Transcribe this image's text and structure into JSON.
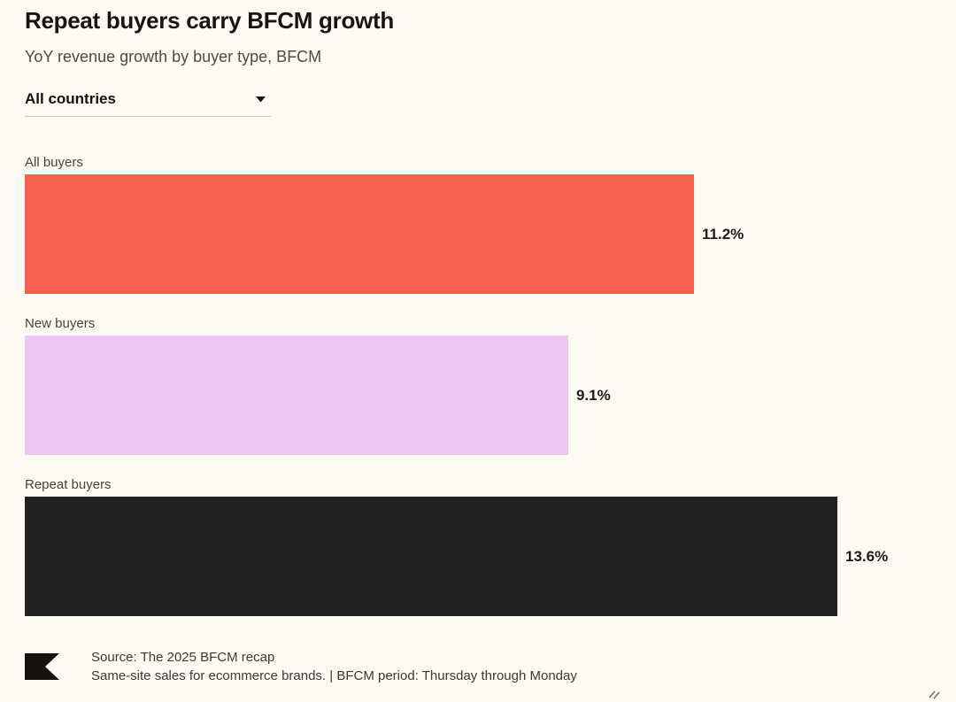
{
  "page": {
    "background_color": "#FDF9F3"
  },
  "header": {
    "title": "Repeat buyers carry BFCM growth",
    "subtitle": "YoY revenue growth by buyer type, BFCM"
  },
  "filter": {
    "selected_value": "All countries"
  },
  "chart_data": {
    "type": "bar",
    "orientation": "horizontal",
    "title": "Repeat buyers carry BFCM growth",
    "subtitle": "YoY revenue growth by buyer type, BFCM",
    "categories": [
      "All buyers",
      "New buyers",
      "Repeat buyers"
    ],
    "values": [
      11.2,
      9.1,
      13.6
    ],
    "value_labels": [
      "11.2%",
      "9.1%",
      "13.6%"
    ],
    "unit": "%",
    "bar_colors": [
      "#F7604F",
      "#F0C5F2",
      "#221F1F"
    ],
    "xlabel": "",
    "ylabel": "",
    "xlim": [
      0,
      13.6
    ],
    "grid": false,
    "legend": false,
    "category_label_position": "above-bar",
    "value_label_position": "right-of-bar"
  },
  "footer": {
    "source_line1": "Source: The 2025 BFCM recap",
    "source_line2": "Same-site sales for ecommerce brands. | BFCM period: Thursday through Monday"
  },
  "icons": {
    "chevron_down": "caret pointing down",
    "brand_logo": "black flag mark with notched right edge",
    "resize_handle": "two diagonal grip lines"
  }
}
